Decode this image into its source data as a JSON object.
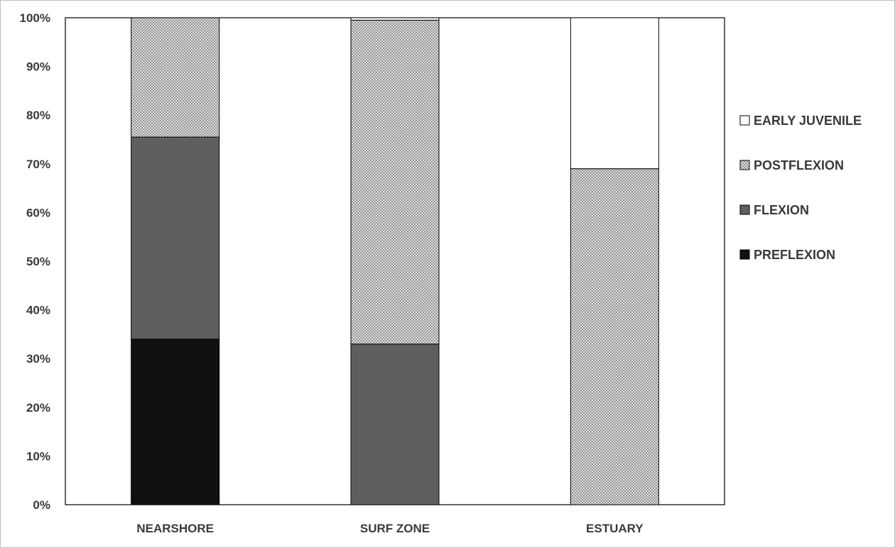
{
  "chart_data": {
    "type": "bar",
    "stacked": true,
    "percent": true,
    "categories": [
      "NEARSHORE",
      "SURF ZONE",
      "ESTUARY"
    ],
    "series": [
      {
        "name": "PREFLEXION",
        "values": [
          34,
          0,
          0
        ],
        "color": "#111111",
        "fill": "solid"
      },
      {
        "name": "FLEXION",
        "values": [
          41.5,
          33,
          0
        ],
        "color": "#5f5f5f",
        "fill": "solid"
      },
      {
        "name": "POSTFLEXION",
        "values": [
          24.5,
          66.5,
          69
        ],
        "color": "#b8b8b8",
        "fill": "crosshatch"
      },
      {
        "name": "EARLY JUVENILE",
        "values": [
          0,
          0.5,
          31
        ],
        "color": "#ffffff",
        "fill": "solid"
      }
    ],
    "yticks": [
      "0%",
      "10%",
      "20%",
      "30%",
      "40%",
      "50%",
      "60%",
      "70%",
      "80%",
      "90%",
      "100%"
    ],
    "ylim": [
      0,
      100
    ],
    "legend": {
      "position": "right",
      "entries": [
        "EARLY JUVENILE",
        "POSTFLEXION",
        "FLEXION",
        "PREFLEXION"
      ]
    },
    "grid": false
  }
}
